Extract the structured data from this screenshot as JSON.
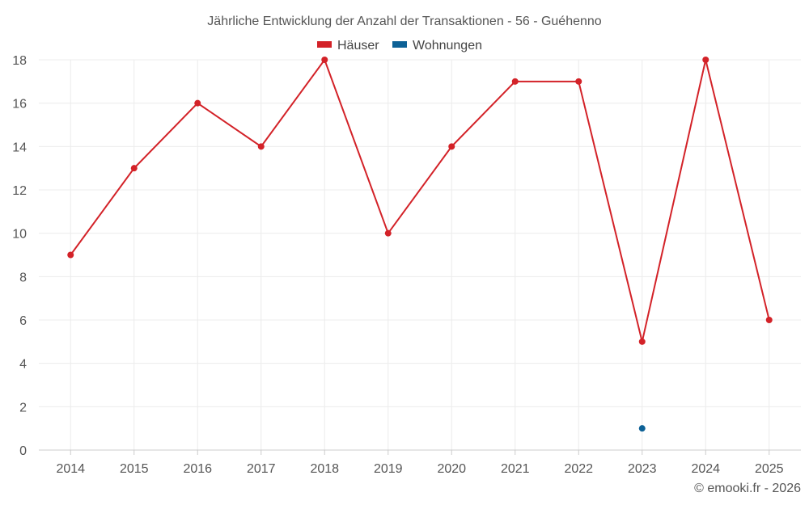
{
  "colors": {
    "houses": "#d32228",
    "apartments": "#0d6196",
    "grid": "#ececec",
    "text": "#555555"
  },
  "credit": "© emooki.fr - 2026",
  "chart_data": {
    "type": "line",
    "title": "Jährliche Entwicklung der Anzahl der Transaktionen - 56 - Guéhenno",
    "categories": [
      "2014",
      "2015",
      "2016",
      "2017",
      "2018",
      "2019",
      "2020",
      "2021",
      "2022",
      "2023",
      "2024",
      "2025"
    ],
    "series": [
      {
        "name": "Häuser",
        "color": "#d32228",
        "values": [
          9,
          13,
          16,
          14,
          18,
          10,
          14,
          17,
          17,
          5,
          18,
          6
        ]
      },
      {
        "name": "Wohnungen",
        "color": "#0d6196",
        "values": [
          null,
          null,
          null,
          null,
          null,
          null,
          null,
          null,
          null,
          1,
          null,
          null
        ]
      }
    ],
    "ylim": [
      0,
      18
    ],
    "yticks": [
      0,
      2,
      4,
      6,
      8,
      10,
      12,
      14,
      16,
      18
    ],
    "xlabel": "",
    "ylabel": "",
    "legend": "top-center",
    "grid": true
  }
}
